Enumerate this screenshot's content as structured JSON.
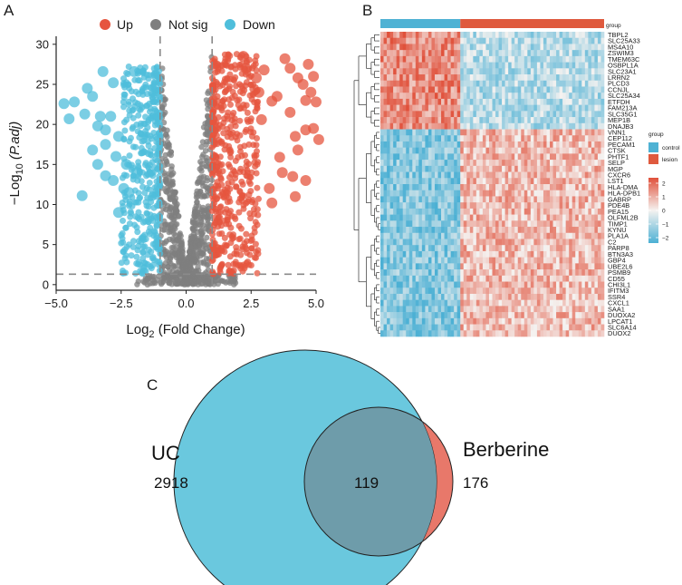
{
  "panels": {
    "a": "A",
    "b": "B",
    "c": "C"
  },
  "colors": {
    "up": "#e6553f",
    "notsig": "#7f7f7f",
    "down": "#4fbedb",
    "control": "#4fb2d4",
    "lesion": "#df5a3e",
    "uc_fill": "#6ac8de",
    "berberine_fill": "#e8786a",
    "overlap_fill": "#6e9caa",
    "overlap_text": "#c0140f"
  },
  "chart_data": [
    {
      "type": "scatter",
      "title": "",
      "xlabel_main": "Log",
      "xlabel_sub": "2",
      "xlabel_rest": " (Fold Change)",
      "ylabel_pre": "−Log",
      "ylabel_sub": "10",
      "ylabel_rest": " (P.adj)",
      "xlim": [
        -5,
        5
      ],
      "ylim": [
        -0.7,
        31
      ],
      "xticks": [
        "−5.0",
        "−2.5",
        "0.0",
        "2.5",
        "5.0"
      ],
      "xtick_values": [
        -5,
        -2.5,
        0,
        2.5,
        5
      ],
      "yticks": [
        "0",
        "5",
        "10",
        "15",
        "20",
        "25",
        "30"
      ],
      "ytick_values": [
        0,
        5,
        10,
        15,
        20,
        25,
        30
      ],
      "fc_cutoff": 1,
      "p_cutoff_line": 1.3,
      "legend": [
        {
          "label": "Up"
        },
        {
          "label": "Not sig"
        },
        {
          "label": "Down"
        }
      ],
      "series": {
        "up_outliers": [
          [
            2.2,
            28.5
          ],
          [
            2.3,
            27
          ],
          [
            2.7,
            25.8
          ],
          [
            3.0,
            26.8
          ],
          [
            2.8,
            24
          ],
          [
            3.3,
            22.9
          ],
          [
            3.5,
            23.5
          ],
          [
            3.8,
            28.2
          ],
          [
            4.0,
            27
          ],
          [
            4.3,
            25.8
          ],
          [
            4.5,
            25
          ],
          [
            4.7,
            27.5
          ],
          [
            4.9,
            26
          ],
          [
            4.8,
            24
          ],
          [
            4.6,
            23
          ],
          [
            5.0,
            22.8
          ],
          [
            4.9,
            19.5
          ],
          [
            4.6,
            19.3
          ],
          [
            4.2,
            18.5
          ],
          [
            5.1,
            18.1
          ],
          [
            4.3,
            16.8
          ],
          [
            4.1,
            13.5
          ],
          [
            4.6,
            13
          ],
          [
            3.7,
            14
          ],
          [
            3.2,
            12
          ],
          [
            3.3,
            10.2
          ],
          [
            2.9,
            20.6
          ],
          [
            4.0,
            21.5
          ],
          [
            3.6,
            15.9
          ],
          [
            4.2,
            11
          ]
        ],
        "down_outliers": [
          [
            -4.7,
            22.6
          ],
          [
            -4.3,
            22.8
          ],
          [
            -3.8,
            24.5
          ],
          [
            -3.6,
            23.5
          ],
          [
            -3.9,
            21.3
          ],
          [
            -3.4,
            19.8
          ],
          [
            -3.1,
            19.3
          ],
          [
            -3.3,
            21
          ],
          [
            -3.6,
            16.8
          ],
          [
            -3.4,
            15
          ],
          [
            -3.1,
            17.5
          ],
          [
            -2.7,
            16
          ],
          [
            -2.9,
            21
          ],
          [
            -2.6,
            18.5
          ],
          [
            -2.8,
            13
          ],
          [
            -3.1,
            13.6
          ],
          [
            -2.4,
            12
          ],
          [
            -2.2,
            11.5
          ],
          [
            -2.6,
            9
          ],
          [
            -3.2,
            26.6
          ],
          [
            -2.0,
            26.6
          ],
          [
            -2.8,
            25.2
          ],
          [
            -4.5,
            20.7
          ],
          [
            -4.0,
            11.1
          ],
          [
            -2.3,
            15
          ],
          [
            -1.9,
            14
          ]
        ]
      }
    },
    {
      "type": "heatmap",
      "annotation_title": "group",
      "legend_group_title": "group",
      "legend_groups": [
        "control",
        "lesion"
      ],
      "scale_ticks": [
        "2",
        "1",
        "0",
        "−1",
        "−2"
      ],
      "n_control_cols": 25,
      "n_lesion_cols": 45,
      "upper_genes": [
        "TBPL2",
        "SLC25A33",
        "MS4A10",
        "ZSWIM3",
        "TMEM63C",
        "OSBPL1A",
        "SLC23A1",
        "LRRN2",
        "PLCD3",
        "CCNJL",
        "SLC25A34",
        "ETFDH",
        "FAM213A",
        "SLC35G1",
        "MEP1B",
        "DNAJB3"
      ],
      "lower_genes": [
        "VNN1",
        "CEP112",
        "PECAM1",
        "CTSK",
        "PHTF1",
        "SELP",
        "MGP",
        "CXCR6",
        "LST1",
        "HLA-DMA",
        "HLA-DPB1",
        "GABRP",
        "PDE4B",
        "PEA15",
        "OLFML2B",
        "TIMP1",
        "KYNU",
        "PLA1A",
        "C2",
        "PARP8",
        "BTN3A3",
        "GBP4",
        "UBE2L6",
        "PSMB9",
        "CD55",
        "CHI3L1",
        "IFITM3",
        "SSR4",
        "CXCL1",
        "SAA1",
        "DUOXA2",
        "LPCAT1",
        "SLC6A14",
        "DUOX2"
      ]
    },
    {
      "type": "venn",
      "sets": [
        {
          "label": "UC",
          "only_count": "2918"
        },
        {
          "label": "Berberine",
          "only_count": "176"
        }
      ],
      "intersection": "119"
    }
  ]
}
